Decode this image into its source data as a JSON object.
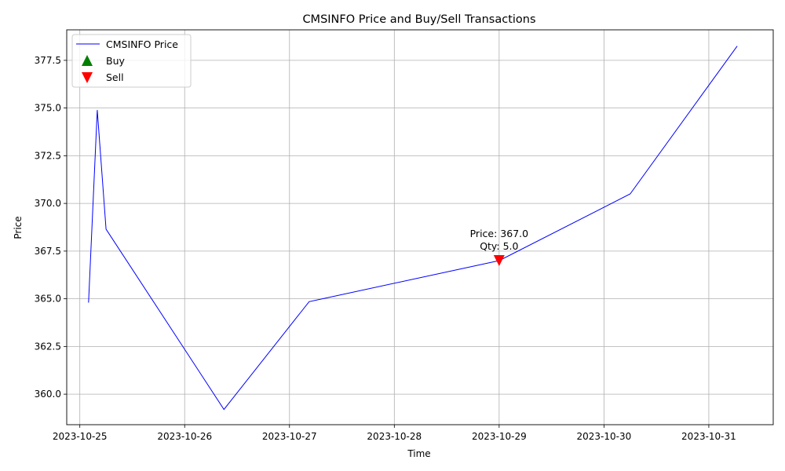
{
  "chart_data": {
    "type": "line",
    "title": "CMSINFO Price and Buy/Sell Transactions",
    "xlabel": "Time",
    "ylabel": "Price",
    "xlim": [
      "2023-10-24T21:00",
      "2023-10-31T14:45"
    ],
    "ylim": [
      358.4,
      379.1
    ],
    "x_ticks": [
      "2023-10-25",
      "2023-10-26",
      "2023-10-27",
      "2023-10-28",
      "2023-10-29",
      "2023-10-30",
      "2023-10-31"
    ],
    "y_ticks": [
      360.0,
      362.5,
      365.0,
      367.5,
      370.0,
      372.5,
      375.0,
      377.5
    ],
    "y_tick_labels": [
      "360.0",
      "362.5",
      "365.0",
      "367.5",
      "370.0",
      "372.5",
      "375.0",
      "377.5"
    ],
    "grid": true,
    "legend_position": "top-left",
    "series": [
      {
        "name": "CMSINFO Price",
        "color": "#0000ff",
        "points": [
          {
            "x": "2023-10-25T02:00",
            "y": 364.8
          },
          {
            "x": "2023-10-25T04:00",
            "y": 374.9
          },
          {
            "x": "2023-10-25T06:00",
            "y": 368.65
          },
          {
            "x": "2023-10-26T09:00",
            "y": 359.2
          },
          {
            "x": "2023-10-27T04:30",
            "y": 364.85
          },
          {
            "x": "2023-10-29T00:00",
            "y": 367.0
          },
          {
            "x": "2023-10-30T06:00",
            "y": 370.5
          },
          {
            "x": "2023-10-31T06:30",
            "y": 378.25
          }
        ]
      }
    ],
    "markers": [
      {
        "name": "Buy",
        "color": "#008000",
        "shape": "triangle-up",
        "points": []
      },
      {
        "name": "Sell",
        "color": "#ff0000",
        "shape": "triangle-down",
        "points": [
          {
            "x": "2023-10-29T00:00",
            "y": 367.0,
            "label_line1": "Price: 367.0",
            "label_line2": "Qty: 5.0"
          }
        ]
      }
    ]
  }
}
